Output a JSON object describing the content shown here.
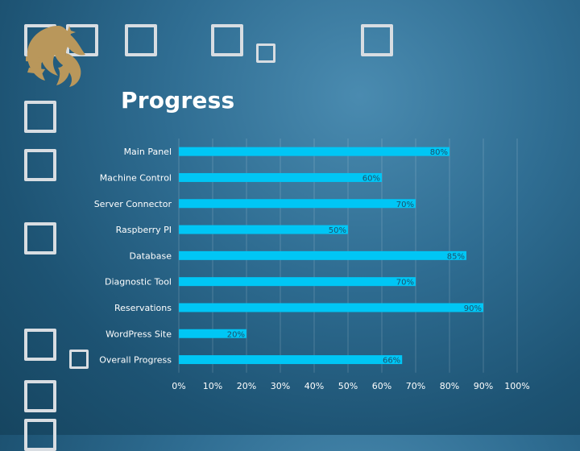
{
  "slide": {
    "title": "Progress",
    "colors": {
      "bar": "#00c6f5",
      "background": "#2f6d92",
      "text": "#ffffff",
      "logo": "#b9975b"
    },
    "logo_icon": "pegasus-logo-icon"
  },
  "chart_data": {
    "type": "bar",
    "orientation": "horizontal",
    "categories": [
      "Main Panel",
      "Machine Control",
      "Server Connector",
      "Raspberry PI",
      "Database",
      "Diagnostic Tool",
      "Reservations",
      "WordPress Site",
      "Overall Progress"
    ],
    "values": [
      80,
      60,
      70,
      50,
      85,
      70,
      90,
      20,
      66
    ],
    "value_labels": [
      "80%",
      "60%",
      "70%",
      "50%",
      "85%",
      "70%",
      "90%",
      "20%",
      "66%"
    ],
    "xlim": [
      0,
      100
    ],
    "x_ticks": [
      "0%",
      "10%",
      "20%",
      "30%",
      "40%",
      "50%",
      "60%",
      "70%",
      "80%",
      "90%",
      "100%"
    ],
    "title": "",
    "xlabel": "",
    "ylabel": "",
    "grid": true,
    "legend": "none"
  }
}
